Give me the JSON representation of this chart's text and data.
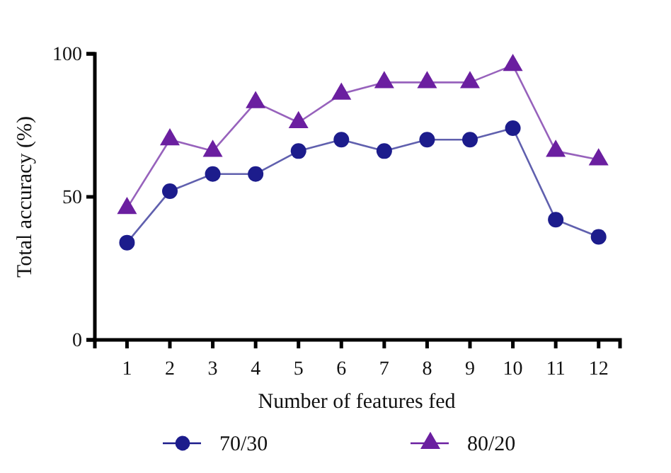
{
  "chart_data": {
    "type": "line",
    "xlabel": "Number of features fed",
    "ylabel": "Total accuracy (%)",
    "x": [
      1,
      2,
      3,
      4,
      5,
      6,
      7,
      8,
      9,
      10,
      11,
      12
    ],
    "xlim": [
      0.25,
      12.5
    ],
    "xticks": [
      1,
      2,
      3,
      4,
      5,
      6,
      7,
      8,
      9,
      10,
      11,
      12
    ],
    "series": [
      {
        "name": "70/30",
        "color": "#1c1c8c",
        "marker": "circle",
        "values": [
          34,
          52,
          58,
          58,
          66,
          70,
          66,
          70,
          70,
          74,
          42,
          36
        ]
      },
      {
        "name": "80/20",
        "color": "#6b1fa0",
        "marker": "triangle",
        "values": [
          46,
          70,
          66,
          83,
          76,
          86,
          90,
          90,
          90,
          96,
          66,
          63
        ]
      }
    ],
    "ylim": [
      0,
      100
    ],
    "yticks": [
      0,
      50,
      100
    ],
    "grid": false,
    "legend": "bottom"
  }
}
